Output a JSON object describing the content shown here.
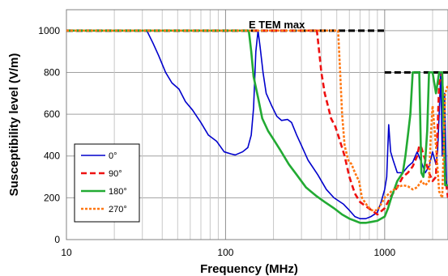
{
  "chart_data": {
    "type": "line",
    "title": "",
    "xlabel": "Frequency (MHz)",
    "ylabel": "Susceptibility level (V/m)",
    "xscale": "log",
    "xlim": [
      10,
      2500
    ],
    "ylim": [
      0,
      1100
    ],
    "xticks": [
      10,
      100,
      1000
    ],
    "xtick_labels": [
      "10",
      "100",
      "1000"
    ],
    "yticks": [
      0,
      200,
      400,
      600,
      800,
      1000
    ],
    "ytick_labels": [
      "0",
      "200",
      "400",
      "600",
      "800",
      "1000"
    ],
    "grid": true,
    "legend_placement": "bottom-left",
    "annotations": [
      {
        "text": "E TEM max",
        "x": 210,
        "y": 1010
      }
    ],
    "reference_lines": [
      {
        "label": "E TEM max",
        "color": "#000000",
        "points": [
          [
            10,
            1000
          ],
          [
            1000,
            1000
          ]
        ]
      },
      {
        "label": "E TEM max",
        "color": "#000000",
        "points": [
          [
            1000,
            800
          ],
          [
            2500,
            800
          ]
        ]
      }
    ],
    "series": [
      {
        "name": "0°",
        "color": "#0000cc",
        "dash": "solid",
        "points": [
          [
            10,
            1000
          ],
          [
            32,
            1000
          ],
          [
            35,
            940
          ],
          [
            38,
            880
          ],
          [
            42,
            800
          ],
          [
            46,
            750
          ],
          [
            51,
            720
          ],
          [
            56,
            660
          ],
          [
            62,
            620
          ],
          [
            70,
            560
          ],
          [
            78,
            500
          ],
          [
            88,
            470
          ],
          [
            98,
            420
          ],
          [
            108,
            410
          ],
          [
            115,
            405
          ],
          [
            128,
            420
          ],
          [
            138,
            440
          ],
          [
            145,
            500
          ],
          [
            150,
            630
          ],
          [
            155,
            900
          ],
          [
            160,
            1000
          ],
          [
            165,
            920
          ],
          [
            172,
            800
          ],
          [
            180,
            700
          ],
          [
            195,
            640
          ],
          [
            210,
            590
          ],
          [
            225,
            570
          ],
          [
            245,
            575
          ],
          [
            260,
            560
          ],
          [
            280,
            500
          ],
          [
            300,
            450
          ],
          [
            330,
            380
          ],
          [
            380,
            310
          ],
          [
            430,
            240
          ],
          [
            480,
            200
          ],
          [
            550,
            170
          ],
          [
            600,
            140
          ],
          [
            650,
            110
          ],
          [
            700,
            100
          ],
          [
            760,
            100
          ],
          [
            820,
            110
          ],
          [
            900,
            130
          ],
          [
            950,
            180
          ],
          [
            1000,
            240
          ],
          [
            1030,
            300
          ],
          [
            1060,
            550
          ],
          [
            1090,
            420
          ],
          [
            1130,
            380
          ],
          [
            1200,
            320
          ],
          [
            1300,
            320
          ],
          [
            1400,
            350
          ],
          [
            1500,
            370
          ],
          [
            1600,
            420
          ],
          [
            1700,
            370
          ],
          [
            1800,
            320
          ],
          [
            1900,
            350
          ],
          [
            2000,
            420
          ],
          [
            2100,
            360
          ],
          [
            2150,
            420
          ],
          [
            2200,
            600
          ],
          [
            2250,
            800
          ],
          [
            2300,
            400
          ],
          [
            2380,
            700
          ],
          [
            2450,
            250
          ],
          [
            2500,
            250
          ]
        ]
      },
      {
        "name": "90°",
        "color": "#ee1111",
        "dash": "dash",
        "points": [
          [
            10,
            1000
          ],
          [
            375,
            1000
          ],
          [
            385,
            920
          ],
          [
            400,
            800
          ],
          [
            420,
            700
          ],
          [
            440,
            640
          ],
          [
            460,
            580
          ],
          [
            490,
            540
          ],
          [
            520,
            480
          ],
          [
            560,
            400
          ],
          [
            600,
            300
          ],
          [
            650,
            220
          ],
          [
            700,
            180
          ],
          [
            760,
            160
          ],
          [
            830,
            140
          ],
          [
            900,
            120
          ],
          [
            1000,
            150
          ],
          [
            1100,
            210
          ],
          [
            1200,
            250
          ],
          [
            1300,
            300
          ],
          [
            1400,
            320
          ],
          [
            1500,
            350
          ],
          [
            1600,
            400
          ],
          [
            1650,
            450
          ],
          [
            1700,
            440
          ],
          [
            1800,
            380
          ],
          [
            1900,
            320
          ],
          [
            2000,
            280
          ],
          [
            2100,
            300
          ],
          [
            2200,
            750
          ],
          [
            2300,
            800
          ],
          [
            2400,
            300
          ],
          [
            2500,
            200
          ]
        ]
      },
      {
        "name": "180°",
        "color": "#22aa33",
        "dash": "solid",
        "points": [
          [
            10,
            1000
          ],
          [
            140,
            1000
          ],
          [
            145,
            900
          ],
          [
            150,
            780
          ],
          [
            160,
            680
          ],
          [
            170,
            580
          ],
          [
            185,
            520
          ],
          [
            200,
            480
          ],
          [
            220,
            430
          ],
          [
            250,
            360
          ],
          [
            280,
            310
          ],
          [
            320,
            250
          ],
          [
            370,
            210
          ],
          [
            420,
            180
          ],
          [
            480,
            150
          ],
          [
            540,
            120
          ],
          [
            600,
            100
          ],
          [
            650,
            90
          ],
          [
            700,
            80
          ],
          [
            760,
            80
          ],
          [
            830,
            85
          ],
          [
            900,
            90
          ],
          [
            1000,
            110
          ],
          [
            1050,
            150
          ],
          [
            1100,
            200
          ],
          [
            1200,
            280
          ],
          [
            1300,
            320
          ],
          [
            1350,
            400
          ],
          [
            1400,
            500
          ],
          [
            1450,
            600
          ],
          [
            1500,
            800
          ],
          [
            1650,
            800
          ],
          [
            1700,
            320
          ],
          [
            1750,
            300
          ],
          [
            1800,
            380
          ],
          [
            1850,
            520
          ],
          [
            1900,
            800
          ],
          [
            2000,
            800
          ],
          [
            2100,
            700
          ],
          [
            2200,
            800
          ],
          [
            2300,
            800
          ],
          [
            2400,
            260
          ],
          [
            2500,
            260
          ]
        ]
      },
      {
        "name": "270°",
        "color": "#ff7711",
        "dash": "dot",
        "points": [
          [
            10,
            1000
          ],
          [
            510,
            1000
          ],
          [
            525,
            800
          ],
          [
            540,
            600
          ],
          [
            560,
            450
          ],
          [
            590,
            380
          ],
          [
            620,
            360
          ],
          [
            650,
            320
          ],
          [
            690,
            280
          ],
          [
            720,
            200
          ],
          [
            780,
            160
          ],
          [
            830,
            140
          ],
          [
            900,
            140
          ],
          [
            950,
            170
          ],
          [
            1000,
            200
          ],
          [
            1100,
            230
          ],
          [
            1200,
            250
          ],
          [
            1300,
            260
          ],
          [
            1400,
            255
          ],
          [
            1500,
            240
          ],
          [
            1600,
            250
          ],
          [
            1700,
            280
          ],
          [
            1800,
            260
          ],
          [
            1900,
            280
          ],
          [
            1950,
            500
          ],
          [
            2000,
            640
          ],
          [
            2100,
            450
          ],
          [
            2200,
            230
          ],
          [
            2300,
            200
          ],
          [
            2400,
            700
          ],
          [
            2500,
            740
          ]
        ]
      }
    ]
  }
}
